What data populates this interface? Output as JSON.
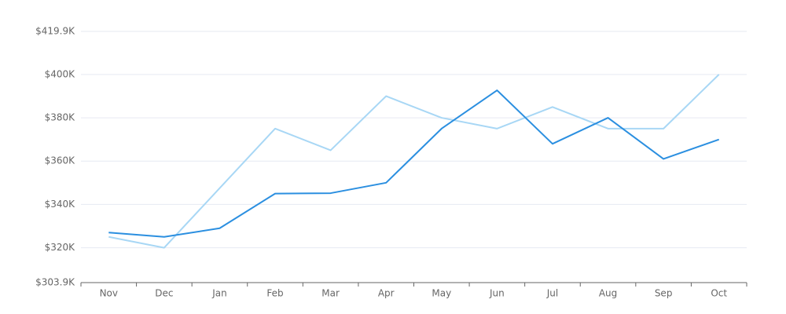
{
  "chart_data": {
    "type": "line",
    "categories": [
      "Nov",
      "Dec",
      "Jan",
      "Feb",
      "Mar",
      "Apr",
      "May",
      "Jun",
      "Jul",
      "Aug",
      "Sep",
      "Oct"
    ],
    "series": [
      {
        "color": "#a8d7f5",
        "values": [
          325000,
          320000,
          347500,
          375000,
          365000,
          390000,
          380000,
          375000,
          385000,
          375000,
          375000,
          400000
        ]
      },
      {
        "color": "#2b8fe0",
        "values": [
          327000,
          325000,
          329000,
          345000,
          345200,
          350000,
          375000,
          392700,
          368000,
          380000,
          361000,
          370000
        ]
      }
    ],
    "ylim": [
      303900,
      419900
    ],
    "yticks": [
      {
        "value": 303900,
        "label": "$303.9K"
      },
      {
        "value": 320000,
        "label": "$320K"
      },
      {
        "value": 340000,
        "label": "$340K"
      },
      {
        "value": 360000,
        "label": "$360K"
      },
      {
        "value": 380000,
        "label": "$380K"
      },
      {
        "value": 400000,
        "label": "$400K"
      },
      {
        "value": 419900,
        "label": "$419.9K"
      }
    ],
    "grid": true
  }
}
